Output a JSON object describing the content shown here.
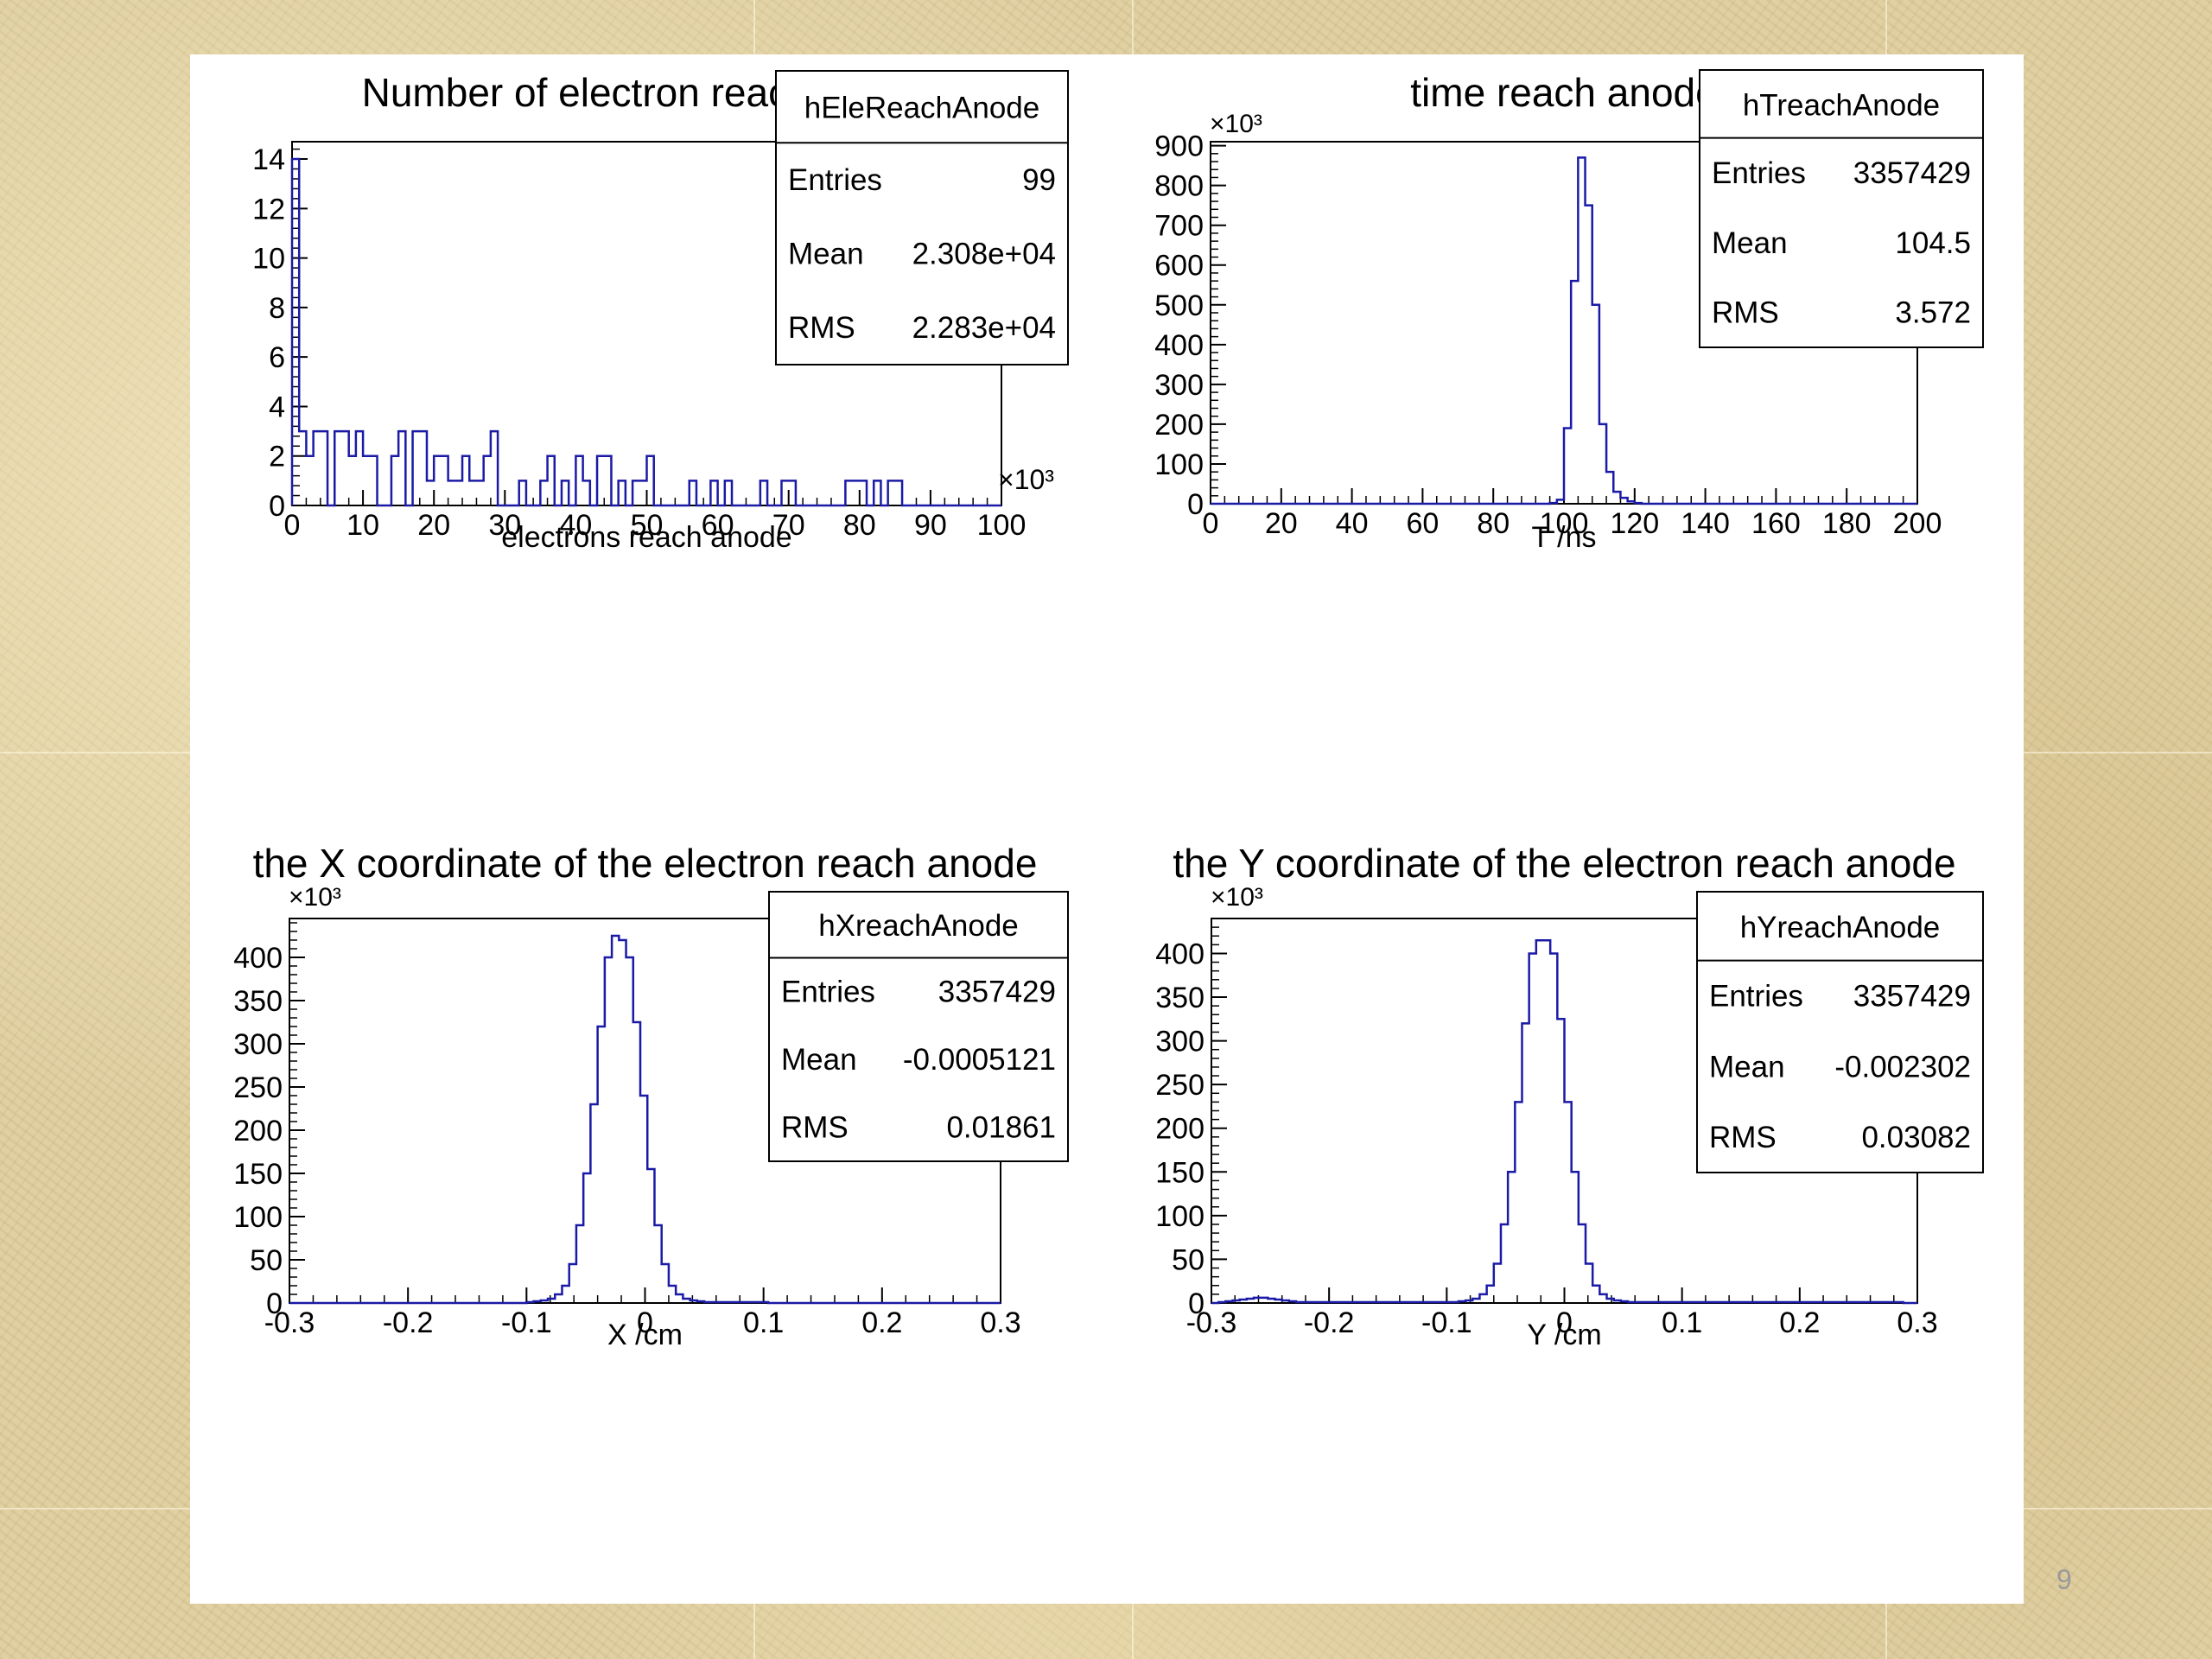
{
  "slide_number": "9",
  "colors": {
    "histogram": "#1a1aa6",
    "axis": "#000000",
    "background": "#ffffff"
  },
  "chart_data": [
    {
      "type": "histogram",
      "title": "Number of electron reach anode",
      "xlabel": "electrons reach anode",
      "ylabel": "",
      "x_multiplier": "×10³",
      "y_multiplier": "",
      "xlim": [
        0,
        100
      ],
      "ylim": [
        0,
        14.7
      ],
      "xticks": [
        0,
        10,
        20,
        30,
        40,
        50,
        60,
        70,
        80,
        90,
        100
      ],
      "yticks": [
        0,
        2,
        4,
        6,
        8,
        10,
        12,
        14
      ],
      "bin_edges_start": 0,
      "bin_width": 1,
      "counts": [
        14,
        3,
        2,
        3,
        3,
        0,
        3,
        3,
        2,
        3,
        2,
        2,
        0,
        0,
        2,
        3,
        0,
        3,
        3,
        1,
        2,
        2,
        1,
        1,
        2,
        1,
        1,
        2,
        3,
        0,
        0,
        0,
        1,
        0,
        0,
        1,
        2,
        0,
        1,
        0,
        2,
        1,
        0,
        2,
        2,
        0,
        1,
        0,
        1,
        1,
        2,
        0,
        0,
        0,
        0,
        0,
        1,
        0,
        0,
        1,
        0,
        1,
        0,
        0,
        0,
        0,
        1,
        0,
        0,
        1,
        1,
        0,
        0,
        0,
        0,
        0,
        0,
        0,
        1,
        1,
        1,
        0,
        1,
        0,
        1,
        1,
        0,
        0,
        0,
        0,
        0,
        0,
        0,
        0,
        0,
        0,
        0,
        0,
        0,
        0
      ],
      "stats": {
        "name": "hEleReachAnode",
        "rows": [
          [
            "Entries",
            "99"
          ],
          [
            "Mean",
            "2.308e+04"
          ],
          [
            "RMS",
            "2.283e+04"
          ]
        ]
      }
    },
    {
      "type": "histogram",
      "title": "time reach anode",
      "xlabel": "T /ns",
      "ylabel": "",
      "x_multiplier": "",
      "y_multiplier": "×10³",
      "xlim": [
        0,
        200
      ],
      "ylim": [
        0,
        910
      ],
      "xticks": [
        0,
        20,
        40,
        60,
        80,
        100,
        120,
        140,
        160,
        180,
        200
      ],
      "yticks": [
        0,
        100,
        200,
        300,
        400,
        500,
        600,
        700,
        800,
        900
      ],
      "bin_edges_start": 96,
      "bin_width": 2,
      "counts": [
        2,
        10,
        190,
        560,
        870,
        750,
        500,
        200,
        80,
        30,
        15,
        6,
        2
      ],
      "stats": {
        "name": "hTreachAnode",
        "rows": [
          [
            "Entries",
            "3357429"
          ],
          [
            "Mean",
            "104.5"
          ],
          [
            "RMS",
            "3.572"
          ]
        ]
      }
    },
    {
      "type": "histogram",
      "title": "the X coordinate of the electron reach anode",
      "xlabel": "X /cm",
      "ylabel": "",
      "x_multiplier": "",
      "y_multiplier": "×10³",
      "xlim": [
        -0.3,
        0.3
      ],
      "ylim": [
        0,
        445
      ],
      "xticks": [
        -0.3,
        -0.2,
        -0.1,
        0,
        0.1,
        0.2,
        0.3
      ],
      "yticks": [
        0,
        50,
        100,
        150,
        200,
        250,
        300,
        350,
        400
      ],
      "bin_edges_start": -0.1,
      "bin_width": 0.006,
      "counts": [
        1,
        2,
        3,
        5,
        10,
        20,
        45,
        90,
        150,
        230,
        320,
        400,
        425,
        420,
        400,
        325,
        240,
        155,
        90,
        45,
        20,
        10,
        5,
        3,
        2,
        1,
        1,
        1,
        1,
        1,
        1,
        1,
        1,
        1
      ],
      "stats": {
        "name": "hXreachAnode",
        "rows": [
          [
            "Entries",
            "3357429"
          ],
          [
            "Mean",
            "-0.0005121"
          ],
          [
            "RMS",
            "0.01861"
          ]
        ]
      }
    },
    {
      "type": "histogram",
      "title": "the Y coordinate of the electron reach anode",
      "xlabel": "Y /cm",
      "ylabel": "",
      "x_multiplier": "",
      "y_multiplier": "×10³",
      "xlim": [
        -0.3,
        0.3
      ],
      "ylim": [
        0,
        440
      ],
      "xticks": [
        -0.3,
        -0.2,
        -0.1,
        0,
        0.1,
        0.2,
        0.3
      ],
      "yticks": [
        0,
        50,
        100,
        150,
        200,
        250,
        300,
        350,
        400
      ],
      "bin_edges_start": -0.3,
      "bin_width": 0.006,
      "counts": [
        0,
        1,
        2,
        3,
        4,
        5,
        6,
        6,
        5,
        4,
        3,
        2,
        1,
        1,
        1,
        1,
        1,
        1,
        1,
        1,
        1,
        1,
        1,
        1,
        1,
        1,
        1,
        1,
        1,
        1,
        1,
        1,
        1,
        1,
        1,
        2,
        3,
        5,
        10,
        20,
        45,
        90,
        150,
        230,
        320,
        400,
        415,
        415,
        400,
        325,
        230,
        150,
        90,
        45,
        20,
        10,
        5,
        3,
        2,
        1,
        1,
        1,
        1,
        1,
        1,
        1,
        1,
        1,
        1,
        1,
        1,
        1,
        1,
        1,
        1,
        1,
        1,
        1,
        1,
        1,
        1,
        1,
        1,
        1,
        1,
        1,
        1,
        1,
        1,
        1,
        1,
        1,
        1,
        1,
        1,
        1,
        1,
        1,
        0,
        0
      ],
      "stats": {
        "name": "hYreachAnode",
        "rows": [
          [
            "Entries",
            "3357429"
          ],
          [
            "Mean",
            "-0.002302"
          ],
          [
            "RMS",
            "0.03082"
          ]
        ]
      }
    }
  ]
}
